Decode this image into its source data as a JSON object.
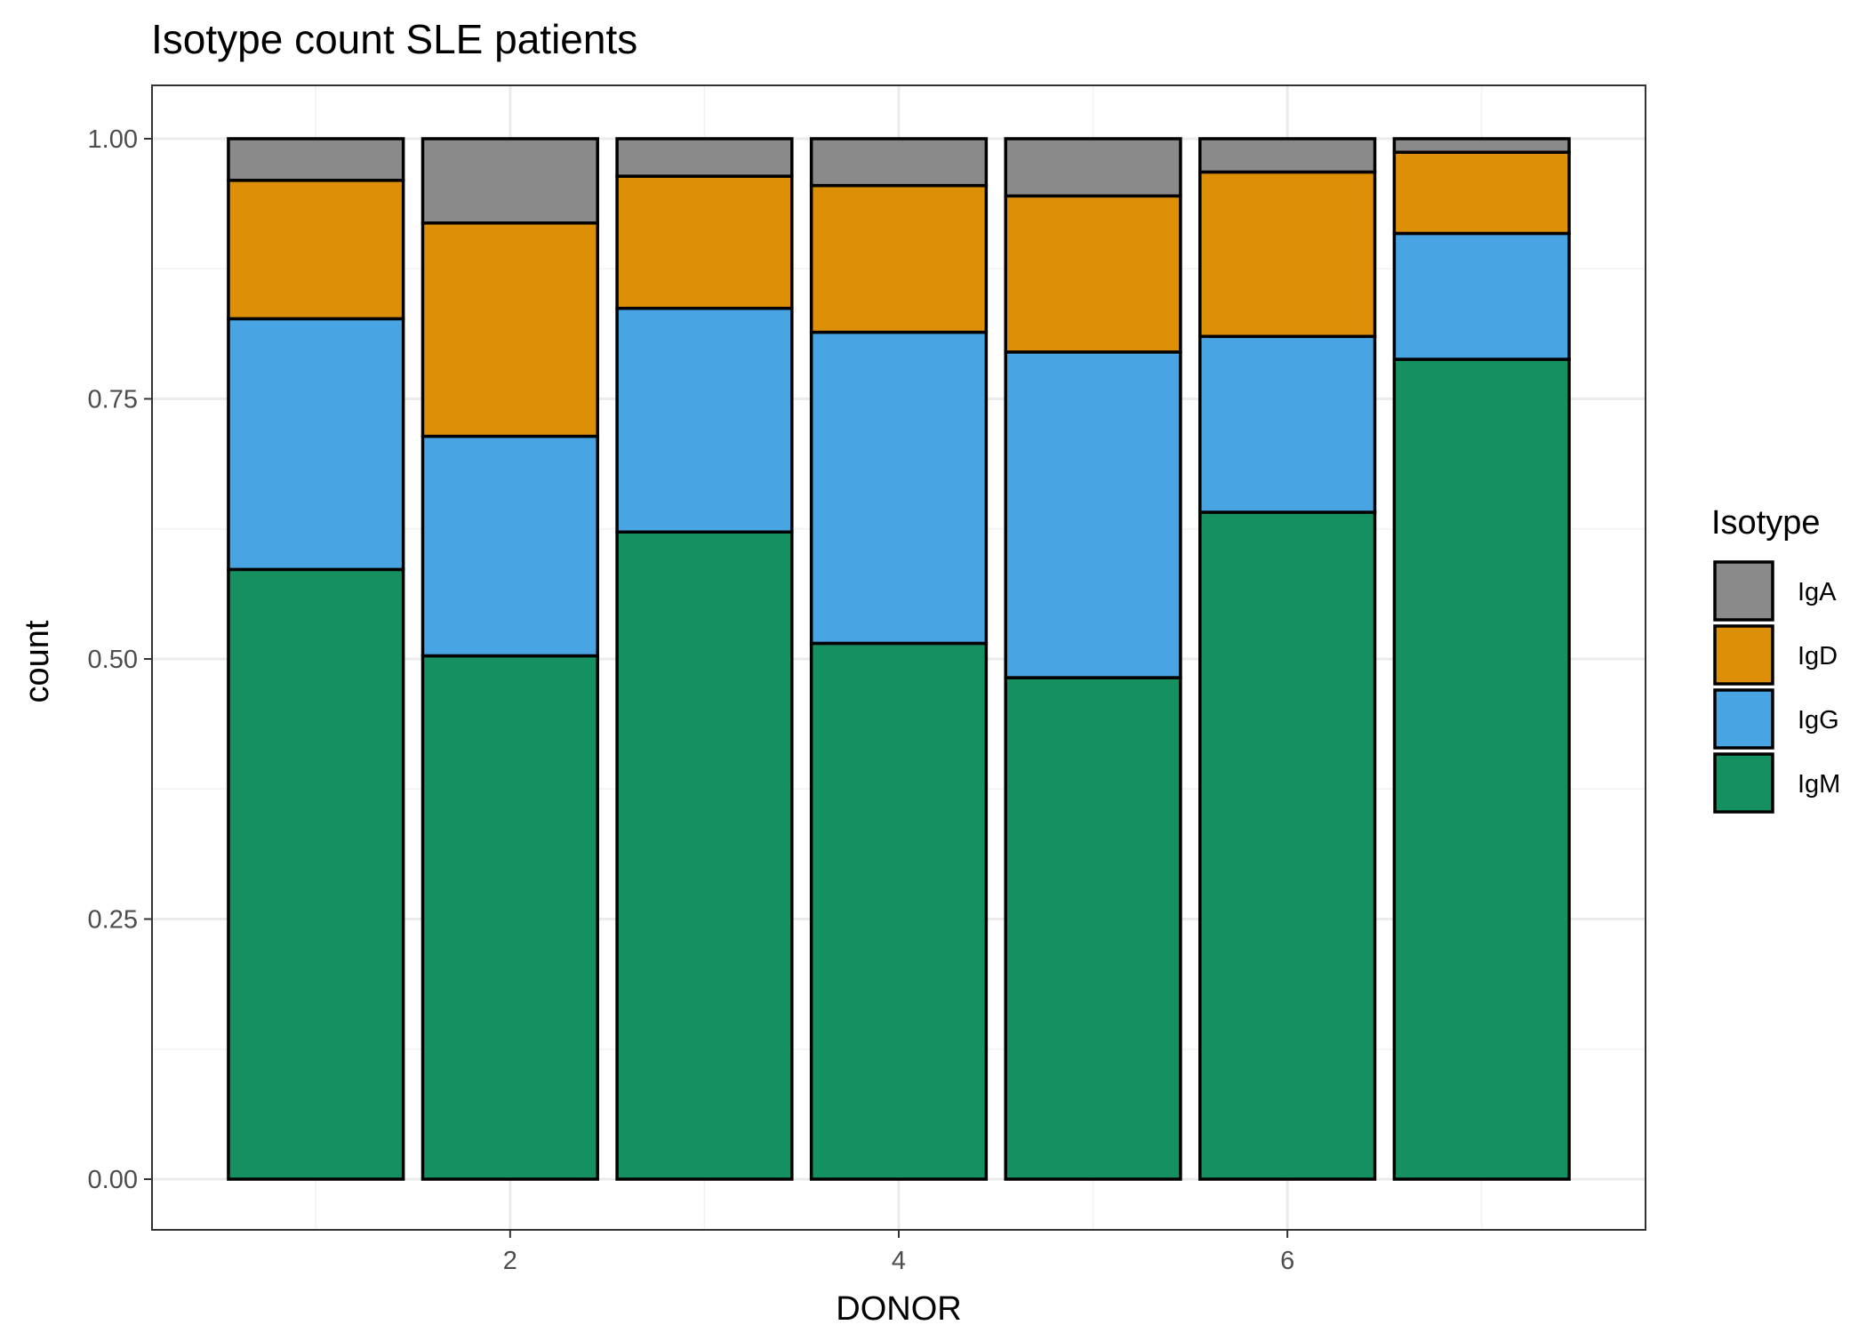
{
  "chart_data": {
    "type": "bar",
    "stacked": true,
    "position": "fill",
    "title": "Isotype count SLE patients",
    "xlabel": "DONOR",
    "ylabel": "count",
    "x": [
      1,
      2,
      3,
      4,
      5,
      6,
      7
    ],
    "xlim": [
      0.5,
      7.5
    ],
    "ylim": [
      0,
      1
    ],
    "x_ticks": [
      2,
      4,
      6
    ],
    "x_tick_labels": [
      "2",
      "4",
      "6"
    ],
    "y_ticks": [
      0,
      0.25,
      0.5,
      0.75,
      1
    ],
    "y_tick_labels": [
      "0.00",
      "0.25",
      "0.50",
      "0.75",
      "1.00"
    ],
    "grid": true,
    "legend": {
      "title": "Isotype",
      "placement": "right"
    },
    "series": [
      {
        "name": "IgM",
        "color": "#159161",
        "values": [
          0.586,
          0.503,
          0.622,
          0.515,
          0.482,
          0.641,
          0.788
        ]
      },
      {
        "name": "IgG",
        "color": "#49a4e3",
        "values": [
          0.241,
          0.211,
          0.215,
          0.299,
          0.313,
          0.169,
          0.121
        ]
      },
      {
        "name": "IgD",
        "color": "#de8f08",
        "values": [
          0.133,
          0.205,
          0.127,
          0.141,
          0.15,
          0.158,
          0.078
        ]
      },
      {
        "name": "IgA",
        "color": "#8a8a8a",
        "values": [
          0.04,
          0.081,
          0.036,
          0.045,
          0.055,
          0.032,
          0.013
        ]
      }
    ],
    "legend_order": [
      "IgA",
      "IgD",
      "IgG",
      "IgM"
    ]
  }
}
